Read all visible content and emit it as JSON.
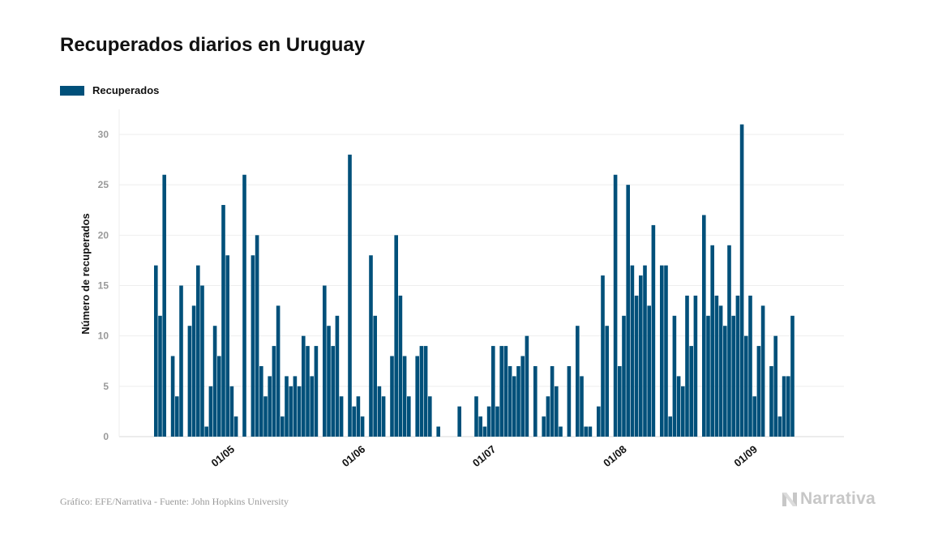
{
  "chart_data": {
    "type": "bar",
    "title": "Recuperados diarios en Uruguay",
    "ylabel": "Número de recuperados",
    "xlabel": "",
    "ylim": [
      0,
      32
    ],
    "yticks": [
      0,
      5,
      10,
      15,
      20,
      25,
      30
    ],
    "xtick_labels": [
      "01/05",
      "01/06",
      "01/07",
      "01/08",
      "01/09"
    ],
    "xtick_index": [
      18,
      49,
      80,
      111,
      142
    ],
    "grid": "horizontal",
    "legend_placement": "top-left",
    "series": [
      {
        "name": "Recuperados",
        "color": "#00507a",
        "values": [
          17,
          12,
          26,
          0,
          8,
          4,
          15,
          0,
          11,
          13,
          17,
          15,
          1,
          5,
          11,
          8,
          23,
          18,
          5,
          2,
          0,
          26,
          0,
          18,
          20,
          7,
          4,
          6,
          9,
          13,
          2,
          6,
          5,
          6,
          5,
          10,
          9,
          6,
          9,
          0,
          15,
          11,
          9,
          12,
          4,
          0,
          28,
          3,
          4,
          2,
          0,
          18,
          12,
          5,
          4,
          0,
          8,
          20,
          14,
          8,
          4,
          0,
          8,
          9,
          9,
          4,
          0,
          1,
          0,
          0,
          0,
          0,
          3,
          0,
          0,
          0,
          4,
          2,
          1,
          3,
          9,
          3,
          9,
          9,
          7,
          6,
          7,
          8,
          10,
          0,
          7,
          0,
          2,
          4,
          7,
          5,
          1,
          0,
          7,
          0,
          11,
          6,
          1,
          1,
          0,
          3,
          16,
          11,
          0,
          26,
          7,
          12,
          25,
          17,
          14,
          16,
          17,
          13,
          21,
          0,
          17,
          17,
          2,
          12,
          6,
          5,
          14,
          9,
          14,
          0,
          22,
          12,
          19,
          14,
          13,
          11,
          19,
          12,
          14,
          31,
          10,
          14,
          4,
          9,
          13,
          0,
          7,
          10,
          2,
          6,
          6,
          12
        ]
      }
    ]
  },
  "footer": {
    "source": "Gráfico: EFE/Narrativa - Fuente: John Hopkins University",
    "brand": "Narrativa"
  }
}
